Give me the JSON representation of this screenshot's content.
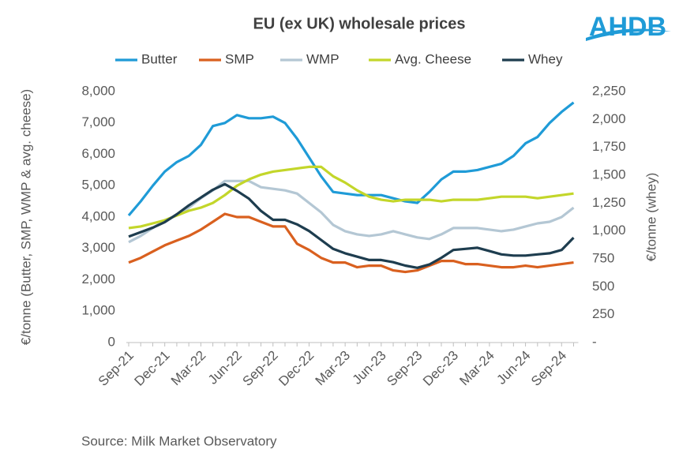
{
  "chart_data": {
    "type": "line",
    "title": "EU (ex UK) wholesale prices",
    "logo": "AHDB",
    "source": "Source: Milk Market Observatory",
    "y_label": "€/tonne (Butter, SMP, WMP & avg. cheese)",
    "y2_label": "€/tonne (whey)",
    "legend": "top",
    "grid": false,
    "categories": [
      "Sep-21",
      null,
      null,
      "Dec-21",
      null,
      null,
      "Mar-22",
      null,
      null,
      "Jun-22",
      null,
      null,
      "Sep-22",
      null,
      null,
      "Dec-22",
      null,
      null,
      "Mar-23",
      null,
      null,
      "Jun-23",
      null,
      null,
      "Sep-23",
      null,
      null,
      "Dec-23",
      null,
      null,
      "Mar-24",
      null,
      null,
      "Jun-24",
      null,
      null,
      "Sep-24",
      null
    ],
    "ylim": [
      0,
      8000
    ],
    "yticks": [
      0,
      {
        "value": 1000,
        "label": "1,000"
      },
      {
        "value": 2000,
        "label": "2,000"
      },
      {
        "value": 3000,
        "label": "3,000"
      },
      {
        "value": 4000,
        "label": "4,000"
      },
      {
        "value": 5000,
        "label": "5,000"
      },
      {
        "value": 6000,
        "label": "6,000"
      },
      {
        "value": 7000,
        "label": "7,000"
      },
      {
        "value": 8000,
        "label": "8,000"
      }
    ],
    "y2lim": [
      0,
      2250
    ],
    "y2ticks": [
      {
        "value": 0,
        "label": "-"
      },
      250,
      500,
      750,
      {
        "value": 1000,
        "label": "1,000"
      },
      {
        "value": 1250,
        "label": "1,250"
      },
      {
        "value": 1500,
        "label": "1,500"
      },
      {
        "value": 1750,
        "label": "1,750"
      },
      {
        "value": 2000,
        "label": "2,000"
      },
      {
        "value": 2250,
        "label": "2,250"
      }
    ],
    "series": [
      {
        "name": "Butter",
        "color": "#1f9bd7",
        "values": [
          4050,
          4500,
          5000,
          5450,
          5750,
          5950,
          6300,
          6900,
          7000,
          7250,
          7150,
          7150,
          7200,
          7000,
          6500,
          5900,
          5300,
          4800,
          4750,
          4700,
          4700,
          4700,
          4600,
          4500,
          4450,
          4800,
          5200,
          5450,
          5450,
          5500,
          5600,
          5700,
          5950,
          6350,
          6550,
          7000,
          7350,
          7650
        ]
      },
      {
        "name": "SMP",
        "color": "#d9601f",
        "values": [
          2550,
          2700,
          2900,
          3100,
          3250,
          3400,
          3600,
          3850,
          4100,
          4000,
          4000,
          3850,
          3700,
          3700,
          3150,
          2950,
          2700,
          2550,
          2550,
          2400,
          2450,
          2450,
          2300,
          2250,
          2300,
          2450,
          2600,
          2600,
          2500,
          2500,
          2450,
          2400,
          2400,
          2450,
          2400,
          2450,
          2500,
          2550
        ]
      },
      {
        "name": "WMP",
        "color": "#b4c7d4",
        "values": [
          3200,
          3400,
          3650,
          3900,
          4050,
          4300,
          4600,
          4850,
          5150,
          5150,
          5150,
          4950,
          4900,
          4850,
          4750,
          4450,
          4150,
          3750,
          3550,
          3450,
          3400,
          3450,
          3550,
          3450,
          3350,
          3300,
          3450,
          3650,
          3650,
          3650,
          3600,
          3550,
          3600,
          3700,
          3800,
          3850,
          4000,
          4300
        ]
      },
      {
        "name": "Avg. Cheese",
        "color": "#c3d62a",
        "values": [
          3650,
          3700,
          3800,
          3900,
          4050,
          4200,
          4300,
          4450,
          4700,
          5000,
          5200,
          5350,
          5450,
          5500,
          5550,
          5600,
          5600,
          5300,
          5100,
          4850,
          4650,
          4550,
          4500,
          4550,
          4550,
          4550,
          4500,
          4550,
          4550,
          4550,
          4600,
          4650,
          4650,
          4650,
          4600,
          4650,
          4700,
          4750
        ]
      },
      {
        "name": "Whey",
        "color": "#1e3d4f",
        "axis": "y2",
        "values": [
          950,
          990,
          1030,
          1080,
          1150,
          1230,
          1300,
          1370,
          1420,
          1360,
          1290,
          1180,
          1100,
          1100,
          1060,
          1000,
          920,
          840,
          800,
          770,
          740,
          740,
          720,
          690,
          670,
          700,
          760,
          830,
          840,
          850,
          820,
          790,
          780,
          780,
          790,
          800,
          830,
          940
        ]
      }
    ]
  }
}
